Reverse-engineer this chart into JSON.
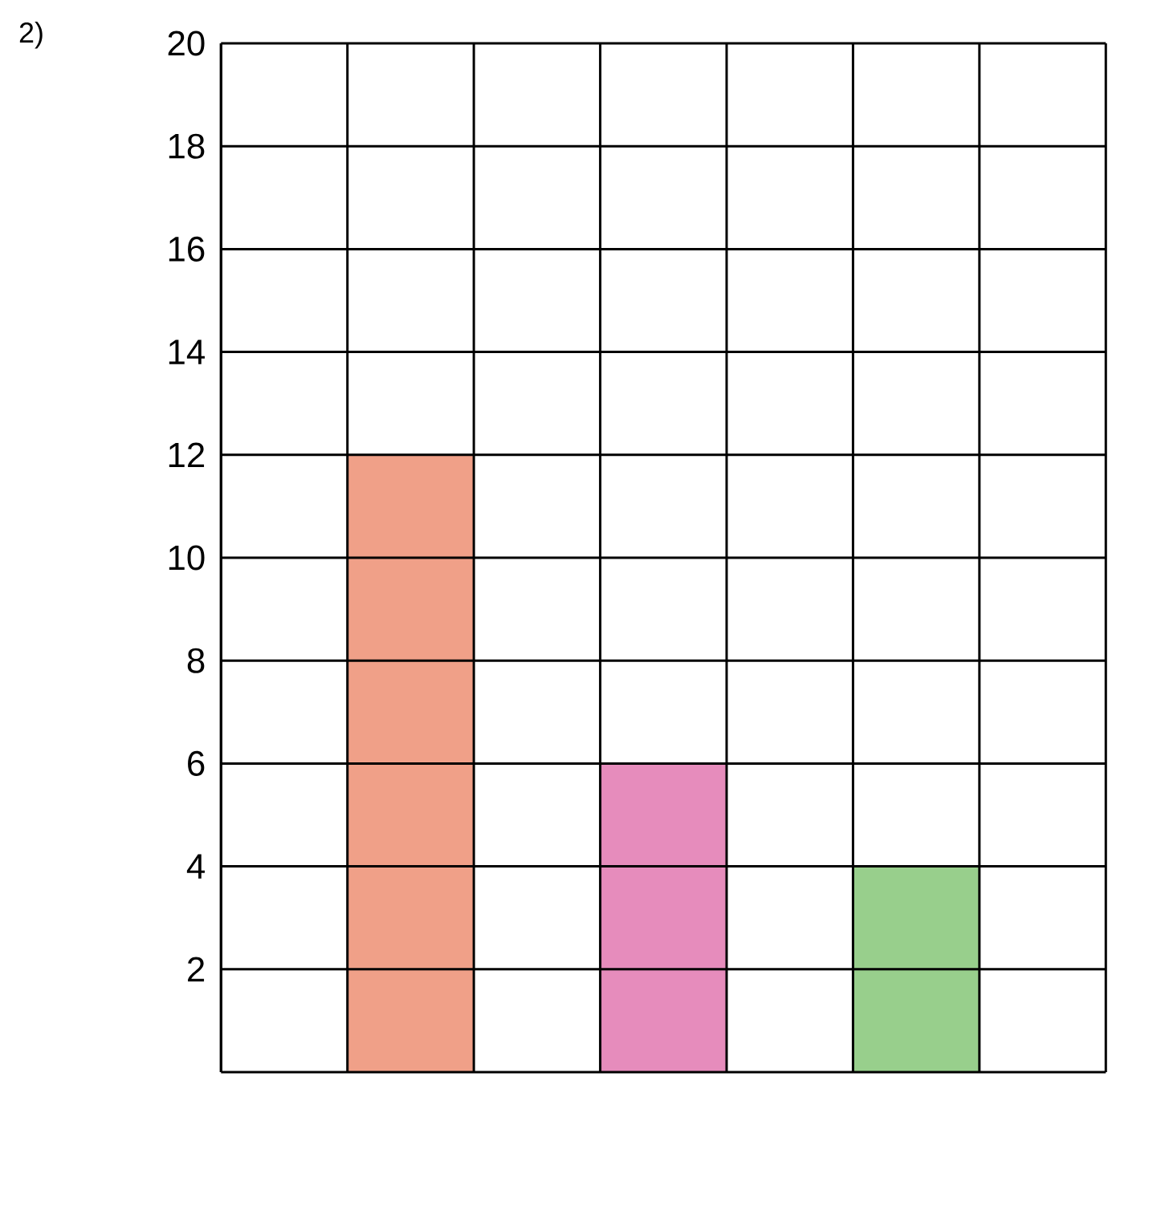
{
  "chart_data": {
    "type": "bar",
    "categories": [
      null,
      null,
      null,
      null,
      null,
      null,
      null
    ],
    "values": [
      null,
      12,
      null,
      6,
      null,
      4,
      null
    ],
    "colors": [
      null,
      "#f0a088",
      null,
      "#e68cbc",
      null,
      "#98cf8c",
      null
    ],
    "ylim": [
      0,
      20
    ],
    "yticks": [
      2,
      4,
      6,
      8,
      10,
      12,
      14,
      16,
      18,
      20
    ],
    "grid": true,
    "tick_labels": "y",
    "annotations": [
      "2)"
    ]
  }
}
